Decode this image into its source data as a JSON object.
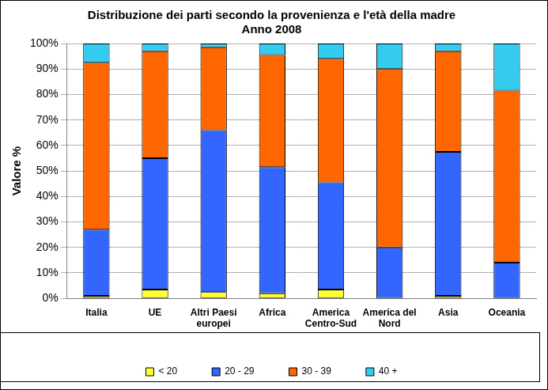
{
  "chart_data": {
    "type": "bar",
    "title": "Distribuzione dei parti secondo la provenienza e l'età della madre",
    "subtitle": "Anno 2008",
    "ylabel": "Valore %",
    "categories": [
      "Italia",
      "UE",
      "Altri Paesi europei",
      "Africa",
      "America Centro-Sud",
      "America del Nord",
      "Asia",
      "Oceania"
    ],
    "series": [
      {
        "name": "< 20",
        "color": "#ffff33",
        "values": [
          1,
          3.5,
          2.5,
          2,
          3.5,
          0,
          1,
          0
        ]
      },
      {
        "name": "20 - 29",
        "color": "#3366ff",
        "values": [
          26,
          51.5,
          63.5,
          49.5,
          42,
          20,
          56.5,
          14
        ]
      },
      {
        "name": "30 - 39",
        "color": "#ff6600",
        "values": [
          65.5,
          42,
          32.5,
          44,
          48.5,
          70,
          39.5,
          67.5
        ]
      },
      {
        "name": "40 +",
        "color": "#33ccee",
        "values": [
          7.5,
          3,
          1.5,
          4.5,
          6,
          10,
          3,
          18.5
        ]
      }
    ],
    "ylim": [
      0,
      100
    ],
    "yticks": [
      {
        "value": 0,
        "label": "0%"
      },
      {
        "value": 10,
        "label": "10%"
      },
      {
        "value": 20,
        "label": "20%"
      },
      {
        "value": 30,
        "label": "30%"
      },
      {
        "value": 40,
        "label": "40%"
      },
      {
        "value": 50,
        "label": "50%"
      },
      {
        "value": 60,
        "label": "60%"
      },
      {
        "value": 70,
        "label": "70%"
      },
      {
        "value": 80,
        "label": "80%"
      },
      {
        "value": 90,
        "label": "90%"
      },
      {
        "value": 100,
        "label": "100%"
      }
    ],
    "grid": true,
    "stacked": true,
    "legend": "bottom"
  }
}
